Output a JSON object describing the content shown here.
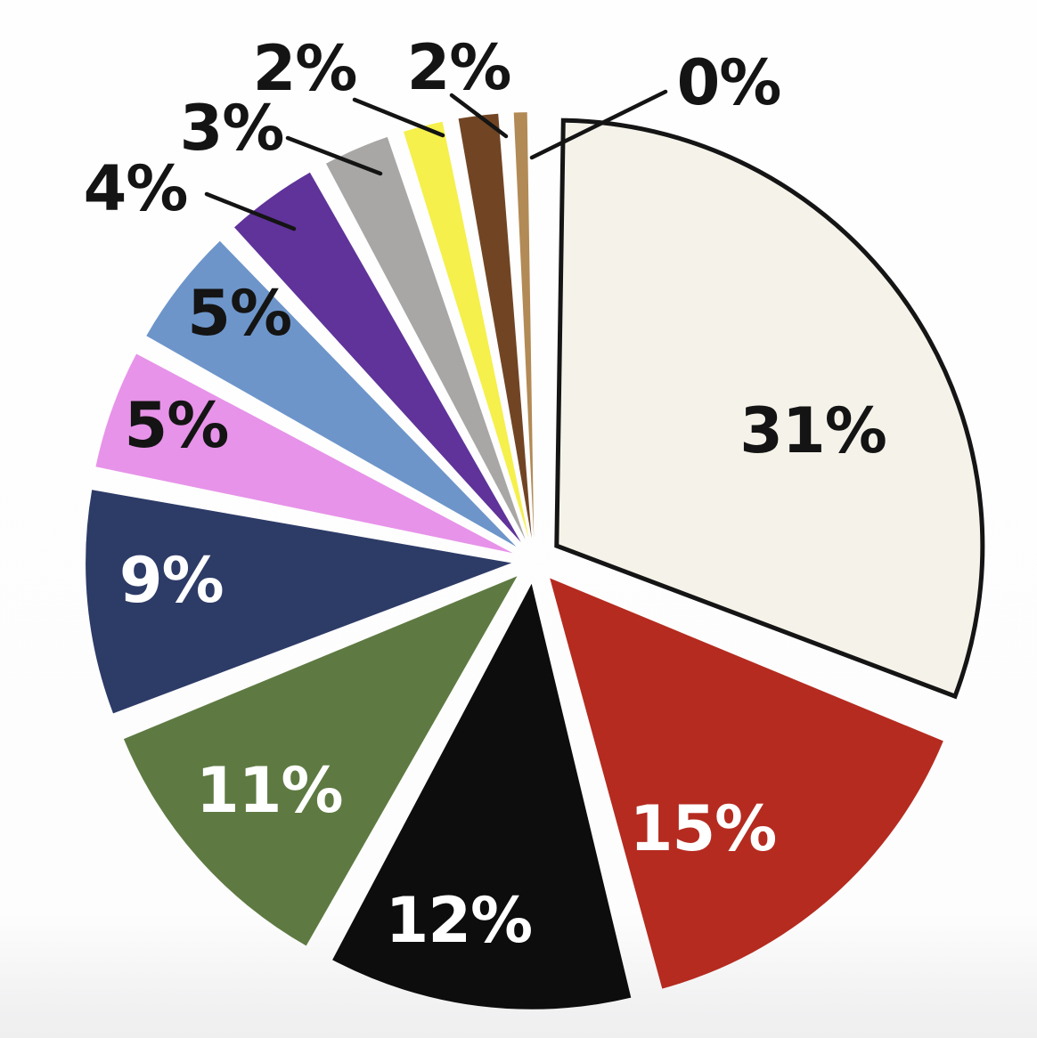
{
  "page": {
    "background": "#fdfdfd"
  },
  "chart_data": {
    "type": "pie",
    "title": "",
    "value_format": "percent",
    "start_angle_deg": 0,
    "direction": "clockwise",
    "exploded": true,
    "legend": "none",
    "slices": [
      {
        "name": "cream",
        "label": "31%",
        "value": 31,
        "color": "#f5f3e9",
        "outline": "#151515",
        "label_color": "#141414",
        "label_position": "inside"
      },
      {
        "name": "red",
        "label": "15%",
        "value": 15,
        "color": "#b52b20",
        "label_color": "#ffffff",
        "label_position": "inside"
      },
      {
        "name": "black",
        "label": "12%",
        "value": 12,
        "color": "#0e0d0e",
        "label_color": "#ffffff",
        "label_position": "inside"
      },
      {
        "name": "olive-green",
        "label": "11%",
        "value": 11,
        "color": "#5e7a42",
        "label_color": "#ffffff",
        "label_position": "inside"
      },
      {
        "name": "navy",
        "label": "9%",
        "value": 9,
        "color": "#2d3b67",
        "label_color": "#ffffff",
        "label_position": "inside"
      },
      {
        "name": "pink",
        "label": "5%",
        "value": 5,
        "color": "#e793e9",
        "label_color": "#141414",
        "label_position": "inside"
      },
      {
        "name": "light-blue",
        "label": "5%",
        "value": 5,
        "color": "#6d95ca",
        "label_color": "#141414",
        "label_position": "inside"
      },
      {
        "name": "purple",
        "label": "4%",
        "value": 4,
        "color": "#5f3399",
        "label_color": "#141414",
        "label_position": "outside"
      },
      {
        "name": "gray",
        "label": "3%",
        "value": 3,
        "color": "#a8a7a6",
        "label_color": "#141414",
        "label_position": "outside"
      },
      {
        "name": "yellow",
        "label": "2%",
        "value": 2,
        "color": "#f5f04b",
        "label_color": "#141414",
        "label_position": "outside"
      },
      {
        "name": "brown",
        "label": "2%",
        "value": 2,
        "color": "#714524",
        "label_color": "#141414",
        "label_position": "outside"
      },
      {
        "name": "tan",
        "label": "0%",
        "value": 0,
        "color": "#b28a55",
        "label_color": "#141414",
        "label_position": "outside"
      }
    ]
  }
}
